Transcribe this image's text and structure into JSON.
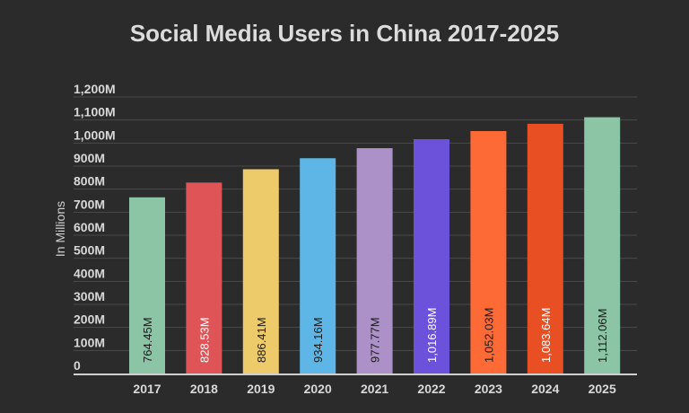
{
  "chart_data": {
    "type": "bar",
    "title": "Social Media Users in China 2017-2025",
    "xlabel": "",
    "ylabel": "In Millions",
    "ylim": [
      0,
      1200
    ],
    "yticks": [
      0,
      100,
      200,
      300,
      400,
      500,
      600,
      700,
      800,
      900,
      1000,
      1100,
      1200
    ],
    "ytick_labels": [
      "0",
      "100M",
      "200M",
      "300M",
      "400M",
      "500M",
      "600M",
      "700M",
      "800M",
      "900M",
      "1,000M",
      "1,100M",
      "1,200M"
    ],
    "grid": true,
    "categories": [
      "2017",
      "2018",
      "2019",
      "2020",
      "2021",
      "2022",
      "2023",
      "2024",
      "2025"
    ],
    "values": [
      764.45,
      828.53,
      886.41,
      934.16,
      977.77,
      1016.89,
      1052.03,
      1083.64,
      1112.06
    ],
    "data_labels": [
      "764.45M",
      "828.53M",
      "886.41M",
      "934.16M",
      "977.77M",
      "1,016.89M",
      "1,052.03M",
      "1,083.64M",
      "1,112.06M"
    ],
    "colors": [
      "#8cc4a6",
      "#de5457",
      "#eecb6a",
      "#5db6e6",
      "#ab91c7",
      "#6c52da",
      "#fd6a36",
      "#e84f22",
      "#8cc4a6"
    ],
    "label_colors": [
      "#1a1a1a",
      "#ffffff",
      "#1a1a1a",
      "#1a1a1a",
      "#1a1a1a",
      "#ffffff",
      "#1a1a1a",
      "#ffffff",
      "#1a1a1a"
    ],
    "background": "#2b2b2b"
  }
}
